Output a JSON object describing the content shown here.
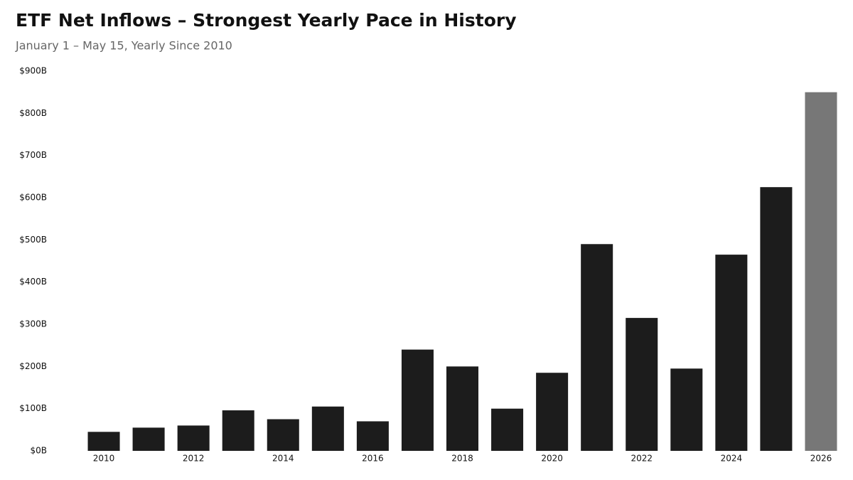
{
  "chart_data": {
    "type": "bar",
    "title": "ETF Net Inflows – Strongest Yearly Pace in History",
    "subtitle": "January 1 – May 15, Yearly Since 2010",
    "categories": [
      "2010",
      null,
      "2012",
      null,
      "2014",
      null,
      "2016",
      null,
      "2018",
      null,
      "2020",
      null,
      "2022",
      null,
      "2024",
      null,
      "2026"
    ],
    "values": [
      45,
      55,
      60,
      96,
      75,
      105,
      70,
      240,
      200,
      100,
      185,
      490,
      315,
      195,
      465,
      625,
      850
    ],
    "colors": [
      "#1c1c1c",
      "#1c1c1c",
      "#1c1c1c",
      "#1c1c1c",
      "#1c1c1c",
      "#1c1c1c",
      "#1c1c1c",
      "#1c1c1c",
      "#1c1c1c",
      "#1c1c1c",
      "#1c1c1c",
      "#1c1c1c",
      "#1c1c1c",
      "#1c1c1c",
      "#1c1c1c",
      "#1c1c1c",
      "#777777"
    ],
    "ylim": [
      0,
      900
    ],
    "yticks": [
      {
        "value": 0,
        "label": "$0B"
      },
      {
        "value": 100,
        "label": "$100B"
      },
      {
        "value": 200,
        "label": "$200B"
      },
      {
        "value": 300,
        "label": "$300B"
      },
      {
        "value": 400,
        "label": "$400B"
      },
      {
        "value": 500,
        "label": "$500B"
      },
      {
        "value": 600,
        "label": "$600B"
      },
      {
        "value": 700,
        "label": "$700B"
      },
      {
        "value": 800,
        "label": "$800B"
      },
      {
        "value": 900,
        "label": "$900B"
      }
    ],
    "grid": false
  }
}
